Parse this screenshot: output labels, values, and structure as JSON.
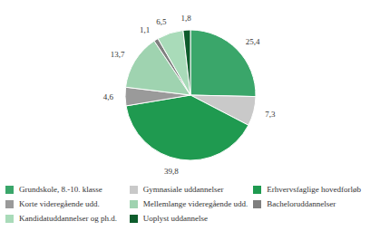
{
  "chart_data": {
    "type": "pie",
    "categories": [
      "Grundskole, 8.-10. klasse",
      "Gymnasiale uddannelser",
      "Erhvervsfaglige hovedforløb",
      "Korte videregående udd.",
      "Mellemlange videregående udd.",
      "Bacheloruddannelser",
      "Kandidatuddannelser og ph.d.",
      "Uoplyst uddannelse"
    ],
    "values": [
      25.4,
      7.3,
      39.8,
      4.6,
      13.7,
      1.1,
      6.5,
      1.8
    ],
    "value_labels": [
      "25,4",
      "7,3",
      "39,8",
      "4,6",
      "13,7",
      "1,1",
      "6,5",
      "1,8"
    ],
    "colors": [
      "#3aa66a",
      "#c9c9c9",
      "#1f9a50",
      "#9a9a9a",
      "#9fd3b0",
      "#7f7f7f",
      "#a9dbb9",
      "#0d5c2c"
    ],
    "data_labels": true,
    "legend": "bottom"
  }
}
